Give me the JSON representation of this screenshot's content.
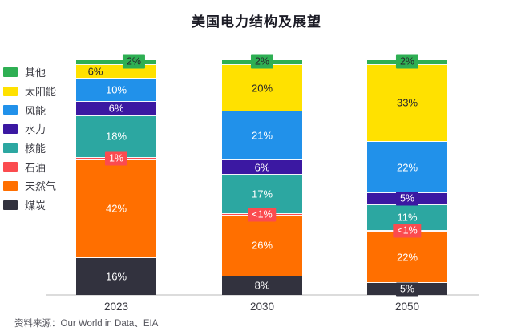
{
  "chart_data": {
    "type": "bar",
    "variant": "stacked-percent",
    "title": "美国电力结构及展望",
    "categories": [
      "2023",
      "2030",
      "2050"
    ],
    "legend_position": "left",
    "grid": false,
    "ylim": [
      0,
      100
    ],
    "xlabel": "",
    "ylabel": "",
    "source_note": "资料来源：Our World in Data、EIA",
    "series": [
      {
        "id": "coal",
        "name": "煤炭",
        "color": "#32323e",
        "label_color": "light",
        "values": [
          16,
          8,
          5
        ],
        "labels": [
          "16%",
          "8%",
          "5%"
        ]
      },
      {
        "id": "natural-gas",
        "name": "天然气",
        "color": "#ff6f00",
        "label_color": "light",
        "values": [
          42,
          26,
          22
        ],
        "labels": [
          "42%",
          "26%",
          "22%"
        ]
      },
      {
        "id": "oil",
        "name": "石油",
        "color": "#fb4b4f",
        "label_color": "light",
        "label_badge": true,
        "values": [
          1,
          0.5,
          0.5
        ],
        "labels": [
          "1%",
          "<1%",
          "<1%"
        ]
      },
      {
        "id": "nuclear",
        "name": "核能",
        "color": "#2ca7a1",
        "label_color": "light",
        "values": [
          18,
          17,
          11
        ],
        "labels": [
          "18%",
          "17%",
          "11%"
        ]
      },
      {
        "id": "hydro",
        "name": "水力",
        "color": "#3b18a2",
        "label_color": "light",
        "values": [
          6,
          6,
          5
        ],
        "labels": [
          "6%",
          "6%",
          "5%"
        ]
      },
      {
        "id": "wind",
        "name": "风能",
        "color": "#2191ea",
        "label_color": "light",
        "values": [
          10,
          21,
          22
        ],
        "labels": [
          "10%",
          "21%",
          "22%"
        ]
      },
      {
        "id": "solar",
        "name": "太阳能",
        "color": "#ffe100",
        "label_color": "dark",
        "values": [
          6,
          20,
          33
        ],
        "labels": [
          "6%",
          "20%",
          "33%"
        ],
        "label_dx": [
          -26,
          0,
          0
        ]
      },
      {
        "id": "other",
        "name": "其他",
        "color": "#2eaf53",
        "label_color": "dark",
        "label_badge": true,
        "values": [
          2,
          2,
          2
        ],
        "labels": [
          "2%",
          "2%",
          "2%"
        ],
        "label_dx": [
          22,
          0,
          0
        ]
      }
    ]
  },
  "legend": {
    "items": [
      {
        "id": "other",
        "label": "其他",
        "color": "#2eaf53"
      },
      {
        "id": "solar",
        "label": "太阳能",
        "color": "#ffe100"
      },
      {
        "id": "wind",
        "label": "风能",
        "color": "#2191ea"
      },
      {
        "id": "hydro",
        "label": "水力",
        "color": "#3b18a2"
      },
      {
        "id": "nuclear",
        "label": "核能",
        "color": "#2ca7a1"
      },
      {
        "id": "oil",
        "label": "石油",
        "color": "#fb4b4f"
      },
      {
        "id": "natural-gas",
        "label": "天然气",
        "color": "#ff6f00"
      },
      {
        "id": "coal",
        "label": "煤炭",
        "color": "#32323e"
      }
    ]
  }
}
